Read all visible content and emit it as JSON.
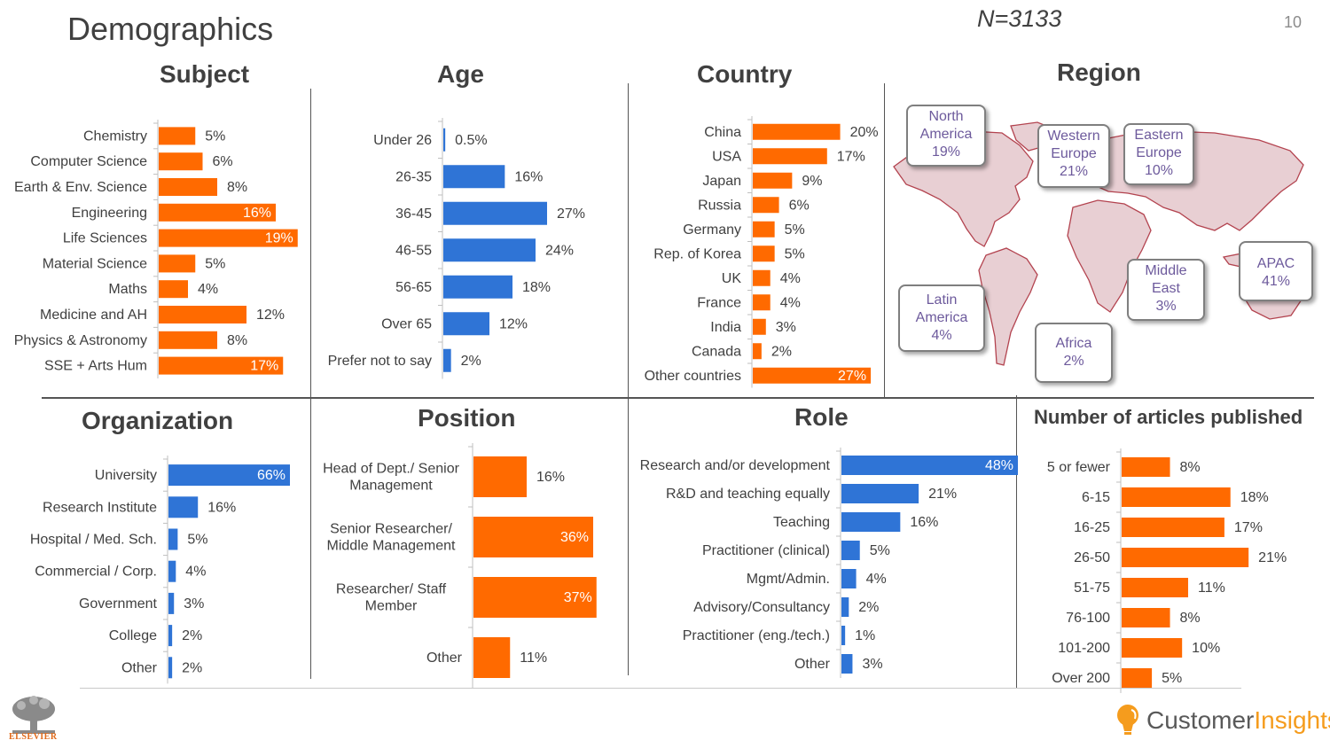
{
  "header": {
    "title": "Demographics",
    "sample_size": "N=3133",
    "page_number": "10"
  },
  "colors": {
    "orange": "#ff6a00",
    "blue": "#2f74d6",
    "axis": "#bfbfbf",
    "callout_text": "#6d5a9c"
  },
  "chart_data": [
    {
      "id": "subject",
      "type": "bar",
      "orientation": "horizontal",
      "title": "Subject",
      "xlim": [
        0,
        20
      ],
      "series": [
        {
          "name": "",
          "color": "orange"
        }
      ],
      "categories": [
        "Chemistry",
        "Computer Science",
        "Earth & Env. Science",
        "Engineering",
        "Life Sciences",
        "Material Science",
        "Maths",
        "Medicine and AH",
        "Physics & Astronomy",
        "SSE + Arts Hum"
      ],
      "values": [
        5,
        6,
        8,
        16,
        19,
        5,
        4,
        12,
        8,
        17
      ],
      "labels": [
        "5%",
        "6%",
        "8%",
        "16%",
        "19%",
        "5%",
        "4%",
        "12%",
        "8%",
        "17%"
      ]
    },
    {
      "id": "age",
      "type": "bar",
      "orientation": "horizontal",
      "title": "Age",
      "xlim": [
        0,
        30
      ],
      "series": [
        {
          "name": "",
          "color": "blue"
        }
      ],
      "categories": [
        "Under 26",
        "26-35",
        "36-45",
        "46-55",
        "56-65",
        "Over 65",
        "Prefer not to say"
      ],
      "values": [
        0.5,
        16,
        27,
        24,
        18,
        12,
        2
      ],
      "labels": [
        "0.5%",
        "16%",
        "27%",
        "24%",
        "18%",
        "12%",
        "2%"
      ]
    },
    {
      "id": "country",
      "type": "bar",
      "orientation": "horizontal",
      "title": "Country",
      "xlim": [
        0,
        28
      ],
      "series": [
        {
          "name": "",
          "color": "orange"
        }
      ],
      "categories": [
        "China",
        "USA",
        "Japan",
        "Russia",
        "Germany",
        "Rep. of Korea",
        "UK",
        "France",
        "India",
        "Canada",
        "Other countries"
      ],
      "values": [
        20,
        17,
        9,
        6,
        5,
        5,
        4,
        4,
        3,
        2,
        27
      ],
      "labels": [
        "20%",
        "17%",
        "9%",
        "6%",
        "5%",
        "5%",
        "4%",
        "4%",
        "3%",
        "2%",
        "27%"
      ]
    },
    {
      "id": "organization",
      "type": "bar",
      "orientation": "horizontal",
      "title": "Organization",
      "xlim": [
        0,
        66
      ],
      "series": [
        {
          "name": "",
          "color": "blue"
        }
      ],
      "categories": [
        "University",
        "Research Institute",
        "Hospital / Med. Sch.",
        "Commercial / Corp.",
        "Government",
        "College",
        "Other"
      ],
      "values": [
        66,
        16,
        5,
        4,
        3,
        2,
        2
      ],
      "labels": [
        "66%",
        "16%",
        "5%",
        "4%",
        "3%",
        "2%",
        "2%"
      ]
    },
    {
      "id": "position",
      "type": "bar",
      "orientation": "horizontal",
      "title": "Position",
      "xlim": [
        0,
        40
      ],
      "series": [
        {
          "name": "",
          "color": "orange"
        }
      ],
      "categories": [
        "Head of Dept./ Senior|Management",
        "Senior Researcher/|Middle Management",
        "Researcher/ Staff|Member",
        "Other"
      ],
      "values": [
        16,
        36,
        37,
        11
      ],
      "labels": [
        "16%",
        "36%",
        "37%",
        "11%"
      ]
    },
    {
      "id": "role",
      "type": "bar",
      "orientation": "horizontal",
      "title": "Role",
      "xlim": [
        0,
        48
      ],
      "series": [
        {
          "name": "",
          "color": "blue"
        }
      ],
      "categories": [
        "Research and/or development",
        "R&D and teaching equally",
        "Teaching",
        "Practitioner (clinical)",
        "Mgmt/Admin.",
        "Advisory/Consultancy",
        "Practitioner (eng./tech.)",
        "Other"
      ],
      "values": [
        48,
        21,
        16,
        5,
        4,
        2,
        1,
        3
      ],
      "labels": [
        "48%",
        "21%",
        "16%",
        "5%",
        "4%",
        "2%",
        "1%",
        "3%"
      ]
    },
    {
      "id": "articles",
      "type": "bar",
      "orientation": "horizontal",
      "title": "Number of articles published",
      "xlim": [
        0,
        22
      ],
      "series": [
        {
          "name": "",
          "color": "orange"
        }
      ],
      "categories": [
        "5 or fewer",
        "6-15",
        "16-25",
        "26-50",
        "51-75",
        "76-100",
        "101-200",
        "Over 200"
      ],
      "values": [
        8,
        18,
        17,
        21,
        11,
        8,
        10,
        5
      ],
      "labels": [
        "8%",
        "18%",
        "17%",
        "21%",
        "11%",
        "8%",
        "10%",
        "5%"
      ]
    }
  ],
  "region": {
    "title": "Region",
    "items": [
      {
        "name": "North America",
        "line1": "North",
        "line2": "America",
        "value": "19%"
      },
      {
        "name": "Western Europe",
        "line1": "Western",
        "line2": "Europe",
        "value": "21%"
      },
      {
        "name": "Eastern Europe",
        "line1": "Eastern",
        "line2": "Europe",
        "value": "10%"
      },
      {
        "name": "APAC",
        "line1": "APAC",
        "line2": "",
        "value": "41%"
      },
      {
        "name": "Middle East",
        "line1": "Middle",
        "line2": "East",
        "value": "3%"
      },
      {
        "name": "Latin America",
        "line1": "Latin",
        "line2": "America",
        "value": "4%"
      },
      {
        "name": "Africa",
        "line1": "Africa",
        "line2": "",
        "value": "2%"
      }
    ]
  },
  "footer": {
    "publisher": "ELSEVIER",
    "brand_part1": "Customer",
    "brand_part2": "Insights"
  }
}
